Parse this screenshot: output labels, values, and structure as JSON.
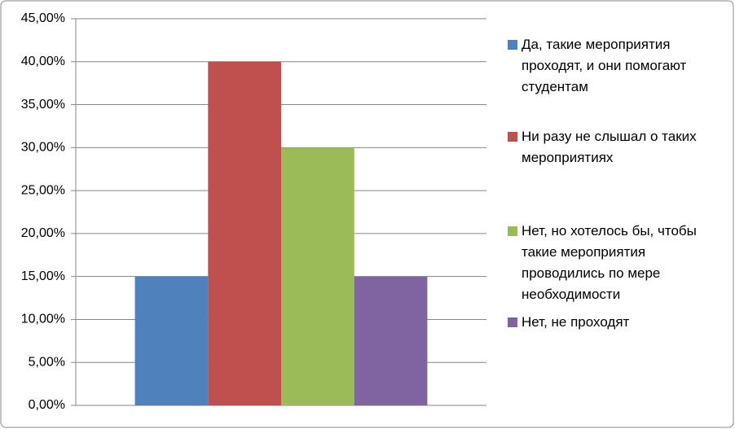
{
  "chart_data": {
    "type": "bar",
    "categories": [
      null
    ],
    "series": [
      {
        "name": "Да, такие мероприятия проходят, и они помогают студентам",
        "color": "#4f81bd",
        "values": [
          15
        ]
      },
      {
        "name": "Ни разу не слышал о таких мероприятиях",
        "color": "#c0504d",
        "values": [
          40
        ]
      },
      {
        "name": "Нет, но хотелось бы, чтобы такие мероприятия проводились по мере необходимости",
        "color": "#9bbb59",
        "values": [
          30
        ]
      },
      {
        "name": "Нет, не проходят",
        "color": "#8064a2",
        "values": [
          15
        ]
      }
    ],
    "ylim": [
      0,
      45
    ],
    "yticks": [
      {
        "value": 0,
        "label": "0,00%"
      },
      {
        "value": 5,
        "label": "5,00%"
      },
      {
        "value": 10,
        "label": "10,00%"
      },
      {
        "value": 15,
        "label": "15,00%"
      },
      {
        "value": 20,
        "label": "20,00%"
      },
      {
        "value": 25,
        "label": "25,00%"
      },
      {
        "value": 30,
        "label": "30,00%"
      },
      {
        "value": 35,
        "label": "35,00%"
      },
      {
        "value": 40,
        "label": "40,00%"
      },
      {
        "value": 45,
        "label": "45,00%"
      }
    ],
    "grid": true,
    "legend": "right"
  }
}
